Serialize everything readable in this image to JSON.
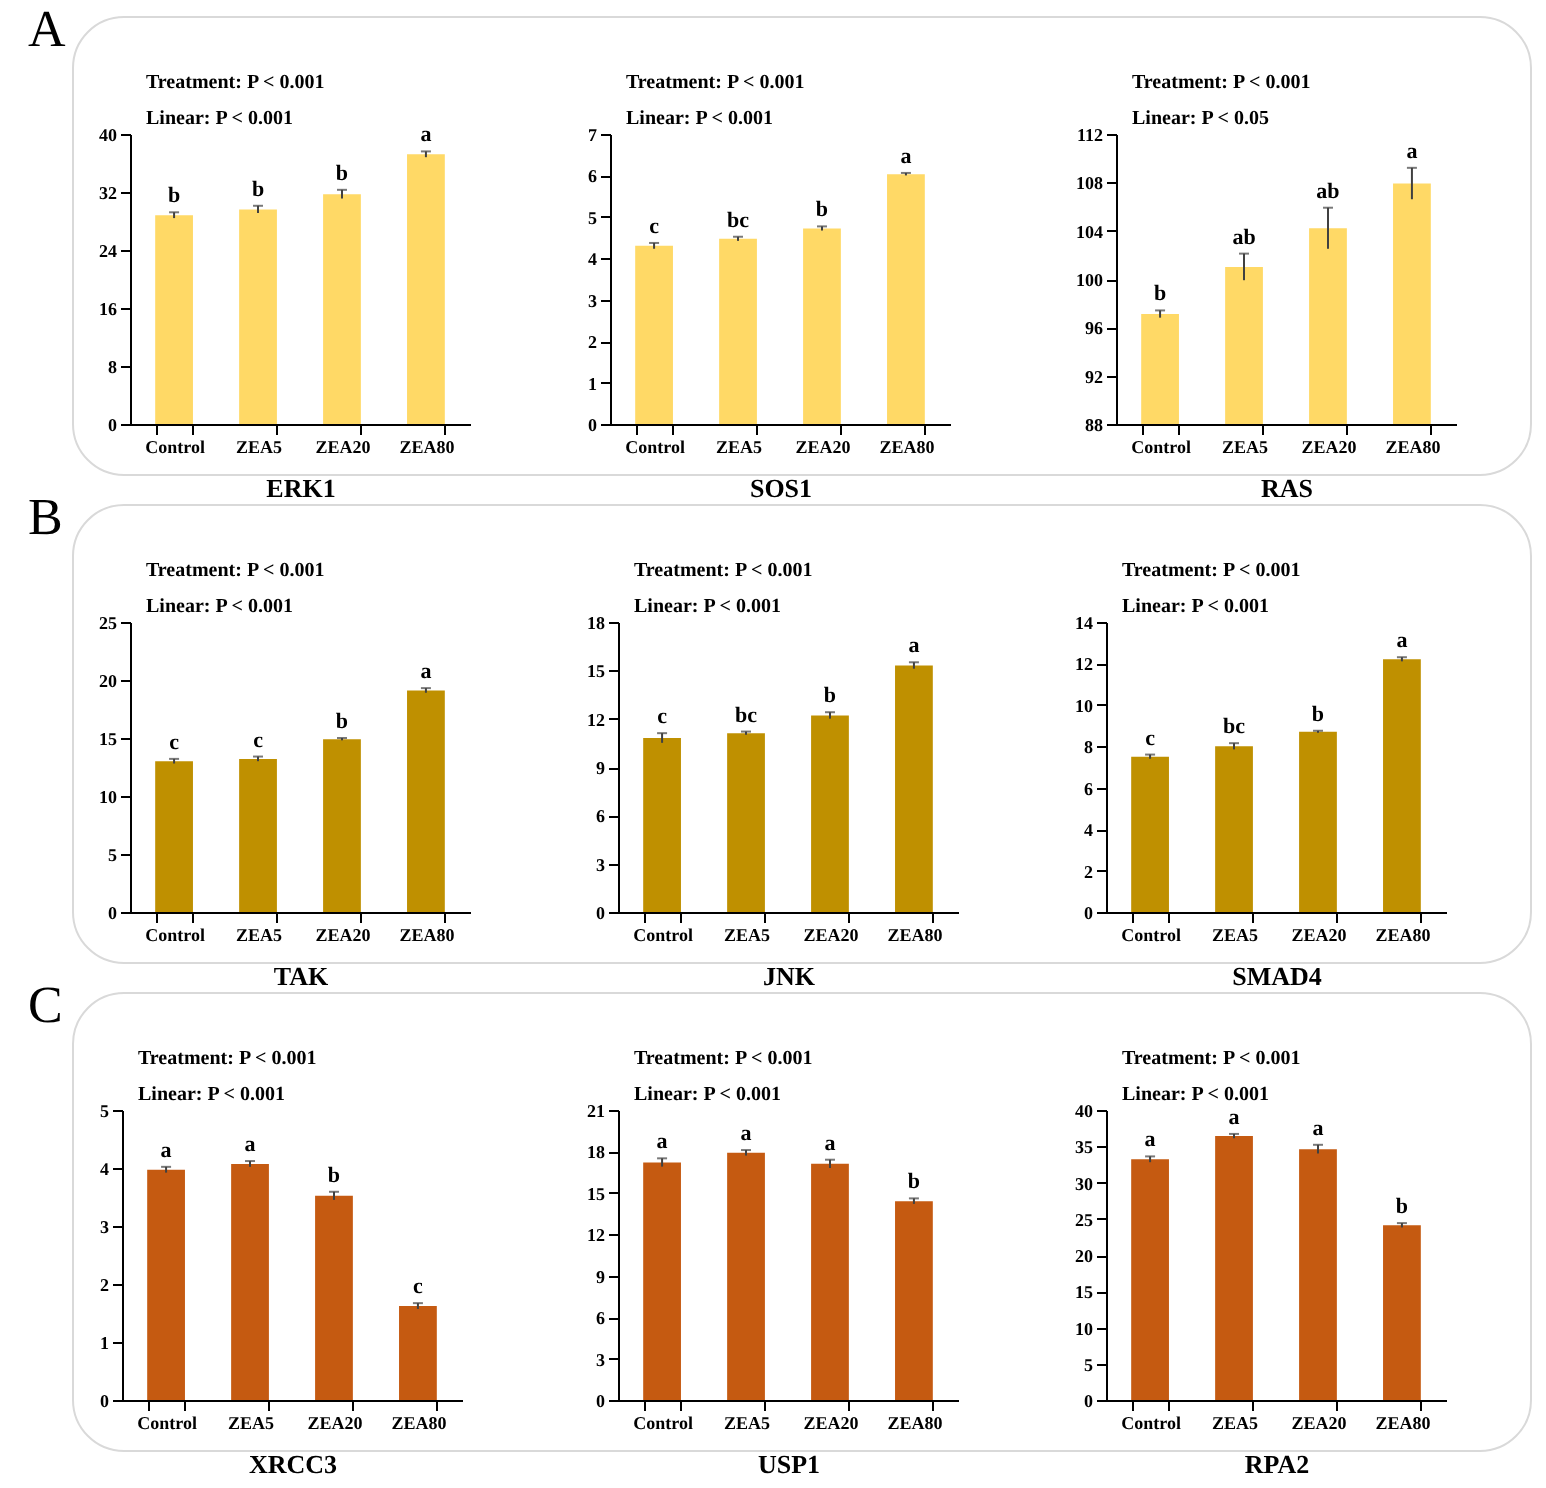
{
  "chart_data": [
    {
      "type": "bar",
      "title": "A",
      "xlabel": "ERK1",
      "categories": [
        "Control",
        "ZEA5",
        "ZEA20",
        "ZEA80"
      ],
      "values": [
        28.8,
        29.6,
        31.7,
        37.2
      ],
      "errors": [
        0.4,
        0.5,
        0.6,
        0.4
      ],
      "color": "#ffd966",
      "ylim": [
        0,
        40
      ],
      "yticks": [
        0,
        8,
        16,
        24,
        32,
        40
      ],
      "grid": false,
      "annotations": [
        "Treatment: P < 0.001",
        "Linear: P < 0.001",
        {
          "text": "b",
          "x": "Control",
          "y": 29.2
        },
        {
          "text": "b",
          "x": "ZEA5",
          "y": 30.1
        },
        {
          "text": "b",
          "x": "ZEA20",
          "y": 32.3
        },
        {
          "text": "a",
          "x": "ZEA80",
          "y": 37.6
        }
      ]
    },
    {
      "type": "bar",
      "xlabel": "SOS1",
      "categories": [
        "Control",
        "ZEA5",
        "ZEA20",
        "ZEA80"
      ],
      "values": [
        4.3,
        4.47,
        4.72,
        6.03
      ],
      "errors": [
        0.07,
        0.05,
        0.05,
        0.03
      ],
      "color": "#ffd966",
      "ylim": [
        0,
        7
      ],
      "yticks": [
        0,
        1,
        2,
        3,
        4,
        5,
        6,
        7
      ],
      "grid": false,
      "annotations": [
        "Treatment: P < 0.001",
        "Linear: P < 0.001",
        {
          "text": "c",
          "x": "Control",
          "y": 4.37
        },
        {
          "text": "bc",
          "x": "ZEA5",
          "y": 4.52
        },
        {
          "text": "b",
          "x": "ZEA20",
          "y": 4.77
        },
        {
          "text": "a",
          "x": "ZEA80",
          "y": 6.06
        }
      ]
    },
    {
      "type": "bar",
      "xlabel": "RAS",
      "categories": [
        "Control",
        "ZEA5",
        "ZEA20",
        "ZEA80"
      ],
      "values": [
        97.1,
        101.0,
        104.2,
        107.9
      ],
      "errors": [
        0.3,
        1.1,
        1.7,
        1.3
      ],
      "color": "#ffd966",
      "ylim": [
        88,
        112
      ],
      "yticks": [
        88,
        92,
        96,
        100,
        104,
        108,
        112
      ],
      "grid": false,
      "annotations": [
        "Treatment: P < 0.001",
        "Linear: P < 0.05",
        {
          "text": "b",
          "x": "Control",
          "y": 97.4
        },
        {
          "text": "ab",
          "x": "ZEA5",
          "y": 102.1
        },
        {
          "text": "ab",
          "x": "ZEA20",
          "y": 105.9
        },
        {
          "text": "a",
          "x": "ZEA80",
          "y": 109.2
        }
      ]
    },
    {
      "type": "bar",
      "title": "B",
      "xlabel": "TAK",
      "categories": [
        "Control",
        "ZEA5",
        "ZEA20",
        "ZEA80"
      ],
      "values": [
        13.0,
        13.2,
        14.9,
        19.1
      ],
      "errors": [
        0.2,
        0.2,
        0.1,
        0.2
      ],
      "color": "#bf9000",
      "ylim": [
        0,
        25
      ],
      "yticks": [
        0,
        5,
        10,
        15,
        20,
        25
      ],
      "grid": false,
      "annotations": [
        "Treatment: P < 0.001",
        "Linear: P < 0.001",
        {
          "text": "c",
          "x": "Control",
          "y": 13.2
        },
        {
          "text": "c",
          "x": "ZEA5",
          "y": 13.4
        },
        {
          "text": "b",
          "x": "ZEA20",
          "y": 15.0
        },
        {
          "text": "a",
          "x": "ZEA80",
          "y": 19.3
        }
      ]
    },
    {
      "type": "bar",
      "xlabel": "JNK",
      "categories": [
        "Control",
        "ZEA5",
        "ZEA20",
        "ZEA80"
      ],
      "values": [
        10.8,
        11.1,
        12.2,
        15.3
      ],
      "errors": [
        0.3,
        0.1,
        0.2,
        0.2
      ],
      "color": "#bf9000",
      "ylim": [
        0,
        18
      ],
      "yticks": [
        0,
        3,
        6,
        9,
        12,
        15,
        18
      ],
      "grid": false,
      "annotations": [
        "Treatment: P < 0.001",
        "Linear: P < 0.001",
        {
          "text": "c",
          "x": "Control",
          "y": 11.1
        },
        {
          "text": "bc",
          "x": "ZEA5",
          "y": 11.2
        },
        {
          "text": "b",
          "x": "ZEA20",
          "y": 12.4
        },
        {
          "text": "a",
          "x": "ZEA80",
          "y": 15.5
        }
      ]
    },
    {
      "type": "bar",
      "xlabel": "SMAD4",
      "categories": [
        "Control",
        "ZEA5",
        "ZEA20",
        "ZEA80"
      ],
      "values": [
        7.5,
        8.0,
        8.7,
        12.2
      ],
      "errors": [
        0.1,
        0.15,
        0.05,
        0.1
      ],
      "color": "#bf9000",
      "ylim": [
        0,
        14
      ],
      "yticks": [
        0,
        2,
        4,
        6,
        8,
        10,
        12,
        14
      ],
      "grid": false,
      "annotations": [
        "Treatment: P < 0.001",
        "Linear: P < 0.001",
        {
          "text": "c",
          "x": "Control",
          "y": 7.6
        },
        {
          "text": "bc",
          "x": "ZEA5",
          "y": 8.15
        },
        {
          "text": "b",
          "x": "ZEA20",
          "y": 8.75
        },
        {
          "text": "a",
          "x": "ZEA80",
          "y": 12.3
        }
      ]
    },
    {
      "type": "bar",
      "title": "C",
      "xlabel": "XRCC3",
      "categories": [
        "Control",
        "ZEA5",
        "ZEA20",
        "ZEA80"
      ],
      "values": [
        3.97,
        4.07,
        3.52,
        1.62
      ],
      "errors": [
        0.05,
        0.05,
        0.07,
        0.05
      ],
      "color": "#c55a11",
      "ylim": [
        0,
        5
      ],
      "yticks": [
        0,
        1,
        2,
        3,
        4,
        5
      ],
      "grid": false,
      "annotations": [
        "Treatment: P < 0.001",
        "Linear: P < 0.001",
        {
          "text": "a",
          "x": "Control",
          "y": 4.02
        },
        {
          "text": "a",
          "x": "ZEA5",
          "y": 4.12
        },
        {
          "text": "b",
          "x": "ZEA20",
          "y": 3.59
        },
        {
          "text": "c",
          "x": "ZEA80",
          "y": 1.67
        }
      ]
    },
    {
      "type": "bar",
      "xlabel": "USP1",
      "categories": [
        "Control",
        "ZEA5",
        "ZEA20",
        "ZEA80"
      ],
      "values": [
        17.2,
        17.9,
        17.1,
        14.4
      ],
      "errors": [
        0.3,
        0.2,
        0.3,
        0.2
      ],
      "color": "#c55a11",
      "ylim": [
        0,
        21
      ],
      "yticks": [
        0,
        3,
        6,
        9,
        12,
        15,
        18,
        21
      ],
      "grid": false,
      "annotations": [
        "Treatment: P < 0.001",
        "Linear: P < 0.001",
        {
          "text": "a",
          "x": "Control",
          "y": 17.5
        },
        {
          "text": "a",
          "x": "ZEA5",
          "y": 18.1
        },
        {
          "text": "a",
          "x": "ZEA20",
          "y": 17.4
        },
        {
          "text": "b",
          "x": "ZEA80",
          "y": 14.6
        }
      ]
    },
    {
      "type": "bar",
      "xlabel": "RPA2",
      "categories": [
        "Control",
        "ZEA5",
        "ZEA20",
        "ZEA80"
      ],
      "values": [
        33.2,
        36.4,
        34.6,
        24.1
      ],
      "errors": [
        0.4,
        0.3,
        0.6,
        0.3
      ],
      "color": "#c55a11",
      "ylim": [
        0,
        40
      ],
      "yticks": [
        0,
        5,
        10,
        15,
        20,
        25,
        30,
        35,
        40
      ],
      "grid": false,
      "annotations": [
        "Treatment: P < 0.001",
        "Linear: P < 0.001",
        {
          "text": "a",
          "x": "Control",
          "y": 33.6
        },
        {
          "text": "a",
          "x": "ZEA5",
          "y": 36.7
        },
        {
          "text": "a",
          "x": "ZEA20",
          "y": 35.2
        },
        {
          "text": "b",
          "x": "ZEA80",
          "y": 24.4
        }
      ]
    }
  ]
}
